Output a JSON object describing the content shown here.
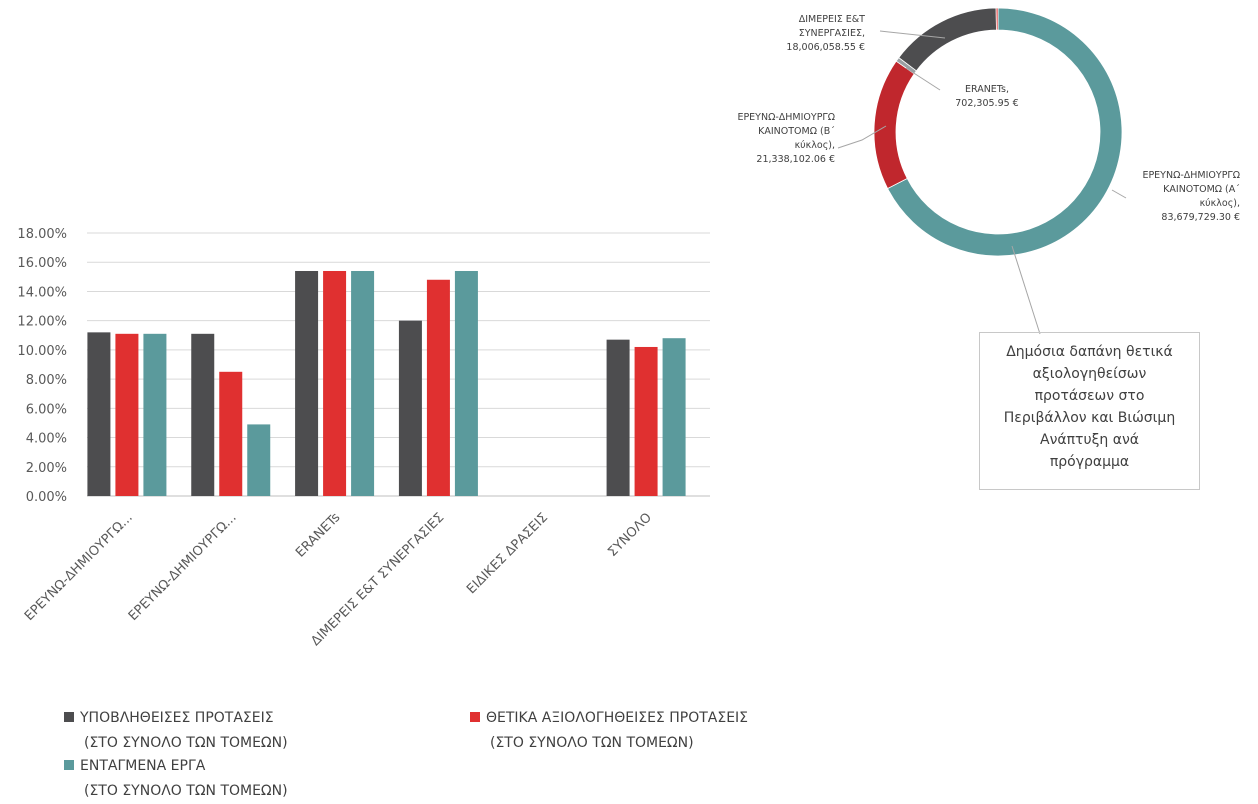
{
  "chart_data": [
    {
      "type": "bar",
      "categories": [
        "ΕΡΕΥΝΩ-ΔΗΜΙΟΥΡΓΩ...",
        "ΕΡΕΥΝΩ-ΔΗΜΙΟΥΡΓΩ...",
        "ERANETs",
        "ΔΙΜΕΡΕΙΣ Ε&Τ ΣΥΝΕΡΓΑΣΙΕΣ",
        "ΕΙΔΙΚΕΣ ΔΡΑΣΕΙΣ",
        "ΣΥΝΟΛΟ"
      ],
      "series": [
        {
          "name": "ΥΠΟΒΛΗΘΕΙΣΕΣ ΠΡΟΤΑΣΕΙΣ (ΣΤΟ ΣΥΝΟΛΟ ΤΩΝ ΤΟΜΕΩΝ)",
          "name_line1": "ΥΠΟΒΛΗΘΕΙΣΕΣ ΠΡΟΤΑΣΕΙΣ",
          "name_line2": "(ΣΤΟ ΣΥΝΟΛΟ ΤΩΝ ΤΟΜΕΩΝ)",
          "color": "#4d4d4f",
          "values": [
            0.112,
            0.111,
            0.154,
            0.12,
            0,
            0.107
          ]
        },
        {
          "name": "ΘΕΤΙΚΑ ΑΞΙΟΛΟΓΗΘΕΙΣΕΣ ΠΡΟΤΑΣΕΙΣ (ΣΤΟ ΣΥΝΟΛΟ ΤΩΝ ΤΟΜΕΩΝ)",
          "name_line1": "ΘΕΤΙΚΑ ΑΞΙΟΛΟΓΗΘΕΙΣΕΣ ΠΡΟΤΑΣΕΙΣ",
          "name_line2": "(ΣΤΟ ΣΥΝΟΛΟ ΤΩΝ ΤΟΜΕΩΝ)",
          "color": "#e03030",
          "values": [
            0.111,
            0.085,
            0.154,
            0.148,
            0,
            0.102
          ]
        },
        {
          "name": "ΕΝΤΑΓΜΕΝΑ ΕΡΓΑ (ΣΤΟ ΣΥΝΟΛΟ ΤΩΝ ΤΟΜΕΩΝ)",
          "name_line1": "ΕΝΤΑΓΜΕΝΑ ΕΡΓΑ",
          "name_line2": "(ΣΤΟ ΣΥΝΟΛΟ ΤΩΝ ΤΟΜΕΩΝ)",
          "color": "#5b9a9c",
          "values": [
            0.111,
            0.049,
            0.154,
            0.154,
            0,
            0.108
          ]
        }
      ],
      "ylim": [
        0,
        0.18
      ],
      "yticks": [
        "0.00%",
        "2.00%",
        "4.00%",
        "6.00%",
        "8.00%",
        "10.00%",
        "12.00%",
        "14.00%",
        "16.00%",
        "18.00%"
      ],
      "grid": true,
      "legend": "bottom"
    },
    {
      "type": "pie",
      "variant": "donut",
      "title": "Δημόσια δαπάνη θετικά αξιολογηθείσων προτάσεων στο Περιβάλλον και Βιώσιμη Ανάπτυξη ανά πρόγραμμα",
      "title_lines": [
        "Δημόσια δαπάνη θετικά",
        "αξιολογηθείσων",
        "προτάσεων στο",
        "Περιβάλλον και Βιώσιμη",
        "Ανάπτυξη ανά",
        "πρόγραμμα"
      ],
      "slices": [
        {
          "label_lines": [
            "ΕΡΕΥΝΩ-ΔΗΜΙΟΥΡΓΩ",
            "ΚΑΙΝΟΤΟΜΩ (Α΄",
            "κύκλος),",
            "83,679,729.30 €"
          ],
          "value": 83679729.3,
          "color": "#5b9a9c"
        },
        {
          "label_lines": [
            "ΕΡΕΥΝΩ-ΔΗΜΙΟΥΡΓΩ",
            "ΚΑΙΝΟΤΟΜΩ (Β΄",
            "κύκλος),",
            "21,338,102.06 €"
          ],
          "value": 21338102.06,
          "color": "#c0272d"
        },
        {
          "label_lines": [
            "ERANETs,",
            "702,305.95 €"
          ],
          "value": 702305.95,
          "color": "#9aa0a3"
        },
        {
          "label_lines": [
            "ΔΙΜΕΡΕΙΣ Ε&Τ",
            "ΣΥΝΕΡΓΑΣΙΕΣ,",
            "18,006,058.55 €"
          ],
          "value": 18006058.55,
          "color": "#4d4d4f"
        },
        {
          "label_lines": [],
          "value": 300000,
          "color": "#e03030"
        }
      ]
    }
  ]
}
